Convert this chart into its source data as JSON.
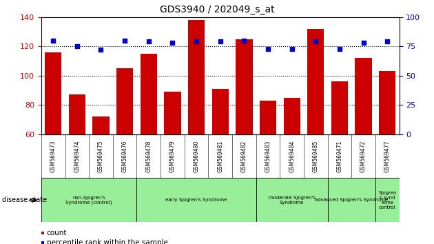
{
  "title": "GDS3940 / 202049_s_at",
  "samples": [
    "GSM569473",
    "GSM569474",
    "GSM569475",
    "GSM569476",
    "GSM569478",
    "GSM569479",
    "GSM569480",
    "GSM569481",
    "GSM569482",
    "GSM569483",
    "GSM569484",
    "GSM569485",
    "GSM569471",
    "GSM569472",
    "GSM569477"
  ],
  "counts": [
    116,
    87,
    72,
    105,
    115,
    89,
    138,
    91,
    125,
    83,
    85,
    132,
    96,
    112,
    103
  ],
  "percentiles": [
    80,
    75,
    72,
    80,
    79,
    78,
    79,
    79,
    80,
    73,
    73,
    79,
    73,
    78,
    79
  ],
  "ylim_left": [
    60,
    140
  ],
  "ylim_right": [
    0,
    100
  ],
  "yticks_left": [
    60,
    80,
    100,
    120,
    140
  ],
  "yticks_right": [
    0,
    25,
    50,
    75,
    100
  ],
  "bar_color": "#cc0000",
  "dot_color": "#0000cc",
  "bg_color": "#ffffff",
  "tick_label_color_left": "#cc0000",
  "tick_label_color_right": "#0000cc",
  "xticklabel_bg": "#cccccc",
  "group_bg": "#99ee99",
  "groups": [
    {
      "label": "non-Sjogren's\nSyndrome (control)",
      "start": 0,
      "end": 4
    },
    {
      "label": "early Sjogren's Syndrome",
      "start": 4,
      "end": 9
    },
    {
      "label": "moderate Sjogren's\nSyndrome",
      "start": 9,
      "end": 12
    },
    {
      "label": "advanced Sjogren's Syndrome",
      "start": 12,
      "end": 14
    },
    {
      "label": "Sjogren\ns synd\nrome\ncontrol",
      "start": 14,
      "end": 15
    }
  ],
  "legend_items": [
    {
      "color": "#cc0000",
      "label": "count"
    },
    {
      "color": "#0000cc",
      "label": "percentile rank within the sample"
    }
  ],
  "disease_state_label": "disease state"
}
